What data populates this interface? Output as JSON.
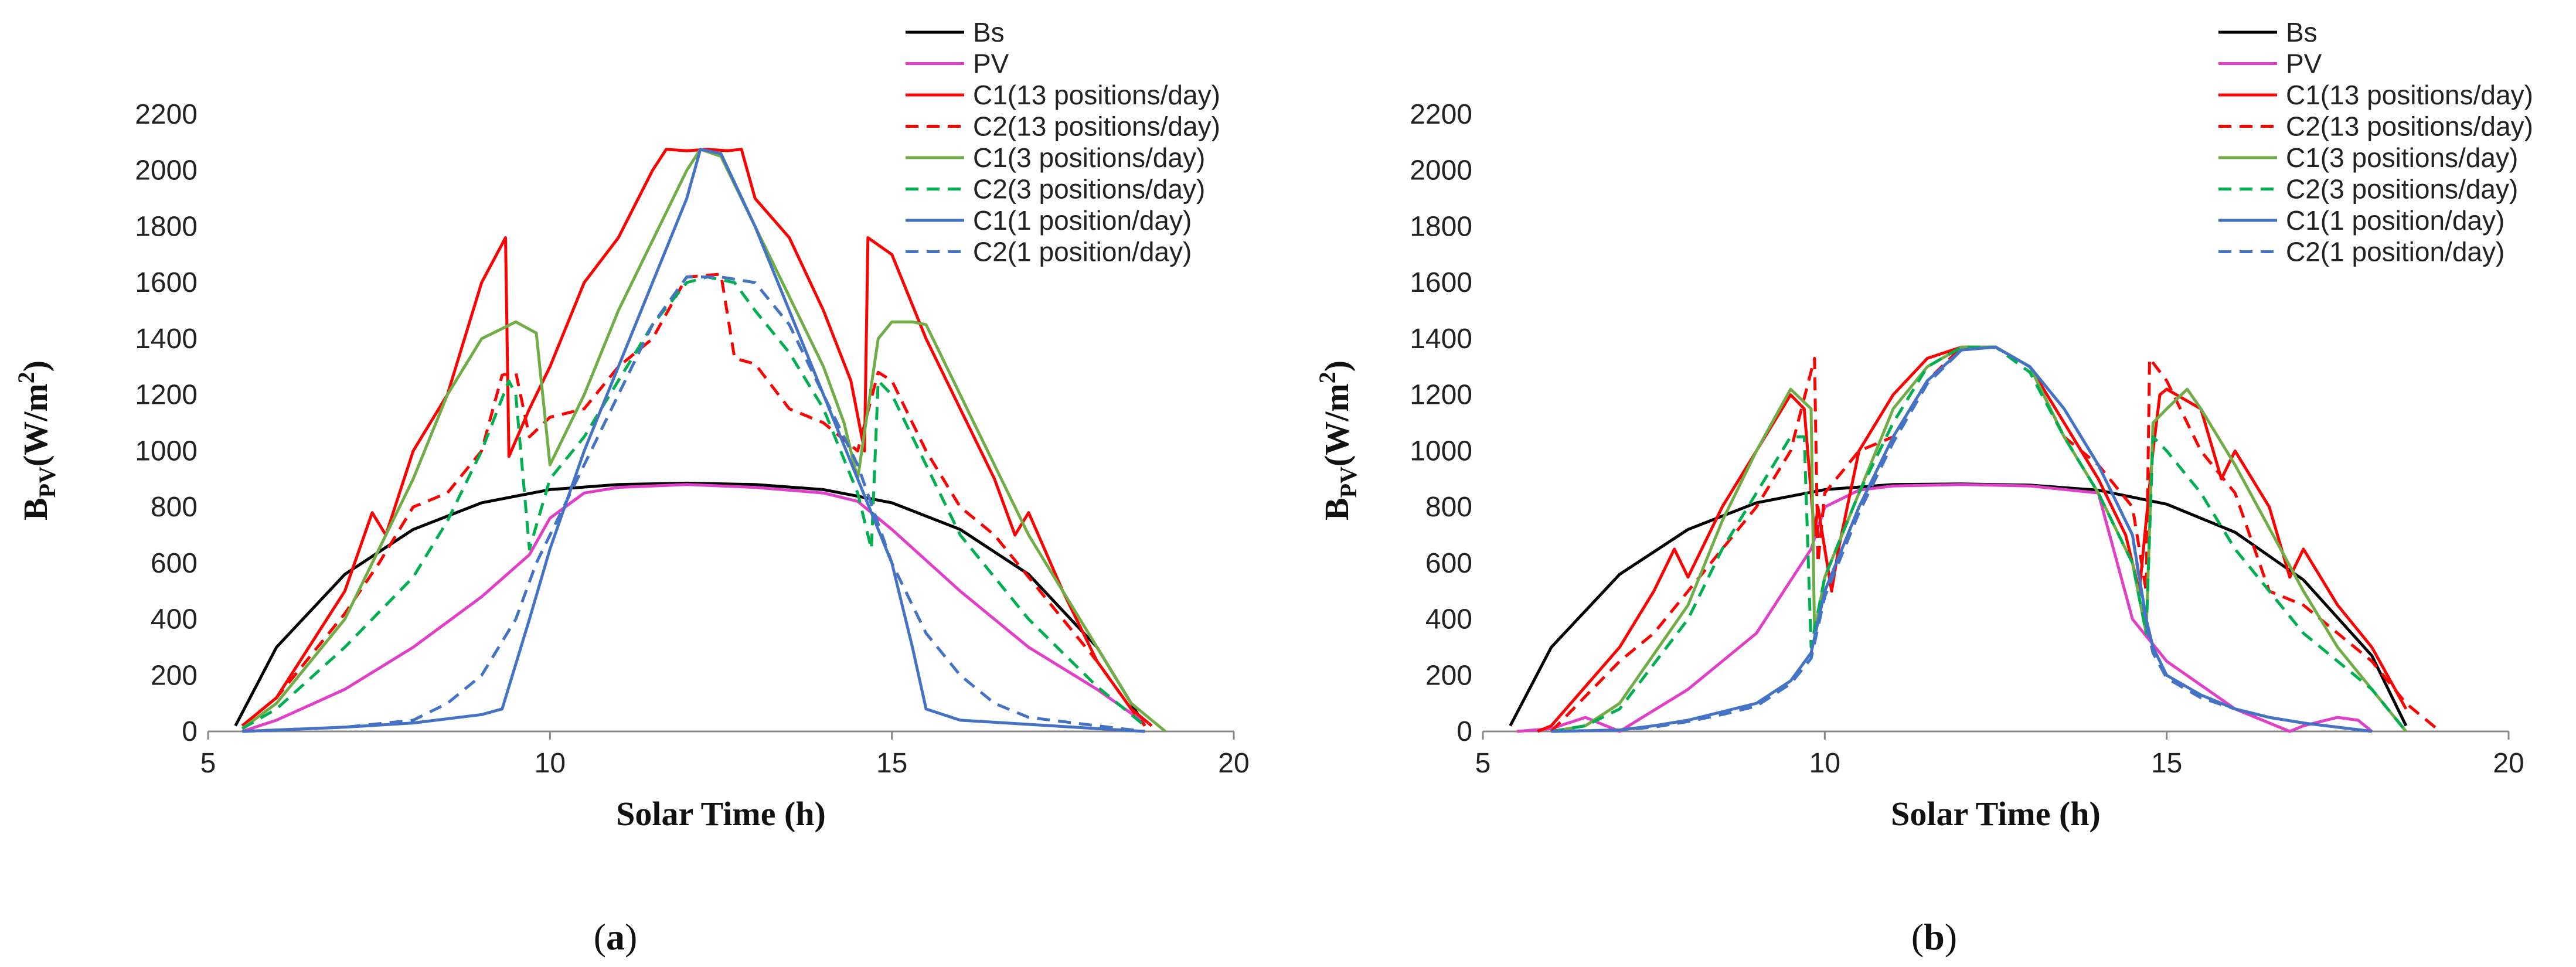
{
  "chart_data": [
    {
      "id": "a",
      "type": "line",
      "caption_letter": "a",
      "xlabel": "Solar Time (h)",
      "ylabel_main": "B",
      "ylabel_sub": "PV",
      "ylabel_unit": "(W/m",
      "ylabel_sup": "2",
      "ylabel_close": ")",
      "xlim": [
        5,
        20
      ],
      "ylim": [
        0,
        2200
      ],
      "xticks": [
        5,
        10,
        15,
        20
      ],
      "yticks": [
        0,
        200,
        400,
        600,
        800,
        1000,
        1200,
        1400,
        1600,
        1800,
        2000,
        2200
      ],
      "grid": false,
      "legend_position": "top-right",
      "series": [
        {
          "name": "Bs",
          "color": "#000000",
          "dash": "solid",
          "x": [
            5.4,
            6,
            7,
            8,
            9,
            10,
            11,
            12,
            13,
            14,
            15,
            16,
            17,
            18,
            18.7
          ],
          "y": [
            20,
            300,
            560,
            720,
            815,
            862,
            880,
            885,
            880,
            862,
            815,
            720,
            560,
            300,
            20
          ]
        },
        {
          "name": "PV",
          "color": "#E040C8",
          "dash": "solid",
          "x": [
            5.5,
            6,
            7,
            8,
            9,
            9.7,
            10,
            10.5,
            11,
            12,
            13,
            14,
            14.5,
            15,
            16,
            17,
            18,
            18.7
          ],
          "y": [
            0,
            40,
            150,
            300,
            480,
            630,
            760,
            850,
            870,
            880,
            870,
            850,
            820,
            720,
            500,
            300,
            150,
            30
          ]
        },
        {
          "name": "C1(13 positions/day)",
          "color": "#FF0000",
          "dash": "solid",
          "x": [
            5.5,
            6,
            7,
            7.4,
            7.6,
            8,
            8.5,
            9,
            9.35,
            9.4,
            9.7,
            10,
            10.5,
            11,
            11.5,
            11.7,
            12,
            12.3,
            12.6,
            12.8,
            13,
            13.5,
            14,
            14.4,
            14.6,
            14.65,
            15,
            15.5,
            16,
            16.5,
            16.8,
            17,
            17.5,
            18,
            18.5,
            18.8
          ],
          "y": [
            20,
            120,
            500,
            780,
            700,
            1000,
            1200,
            1600,
            1760,
            980,
            1150,
            1300,
            1600,
            1760,
            2000,
            2075,
            2070,
            2075,
            2070,
            2075,
            1900,
            1760,
            1500,
            1250,
            1000,
            1760,
            1700,
            1400,
            1150,
            900,
            700,
            780,
            500,
            250,
            80,
            20
          ]
        },
        {
          "name": "C2(13 positions/day)",
          "color": "#FF0000",
          "dash": "dashed",
          "x": [
            5.5,
            6,
            7,
            7.5,
            8,
            8.5,
            9,
            9.3,
            9.5,
            9.7,
            10,
            10.5,
            11,
            11.5,
            12,
            12.5,
            12.7,
            13,
            13.5,
            14,
            14.5,
            14.8,
            15,
            15.5,
            16,
            16.5,
            17,
            17.5,
            18,
            18.5,
            18.7
          ],
          "y": [
            20,
            120,
            420,
            600,
            800,
            850,
            1000,
            1270,
            1280,
            1050,
            1120,
            1150,
            1300,
            1400,
            1620,
            1630,
            1330,
            1310,
            1150,
            1100,
            1000,
            1280,
            1250,
            1000,
            800,
            700,
            550,
            400,
            250,
            80,
            20
          ]
        },
        {
          "name": "C1(3 positions/day)",
          "color": "#70AD47",
          "dash": "solid",
          "x": [
            5.5,
            6,
            7,
            8,
            8.5,
            9,
            9.5,
            9.8,
            10,
            10.5,
            11,
            11.5,
            12,
            12.2,
            12.5,
            13,
            13.5,
            14,
            14.3,
            14.5,
            14.8,
            15,
            15.3,
            15.5,
            16,
            17,
            18,
            18.5,
            19
          ],
          "y": [
            10,
            100,
            400,
            900,
            1200,
            1400,
            1460,
            1420,
            950,
            1200,
            1500,
            1750,
            2000,
            2075,
            2050,
            1800,
            1550,
            1300,
            1100,
            900,
            1400,
            1460,
            1460,
            1450,
            1200,
            700,
            300,
            100,
            0
          ]
        },
        {
          "name": "C2(3 positions/day)",
          "color": "#00B050",
          "dash": "dashed",
          "x": [
            5.5,
            6,
            7,
            8,
            8.5,
            9,
            9.4,
            9.5,
            9.7,
            10,
            10.5,
            11,
            11.5,
            12,
            12.3,
            12.7,
            13,
            13.5,
            14,
            14.5,
            14.7,
            14.8,
            15,
            15.5,
            16,
            16.5,
            17,
            17.5,
            18,
            18.7
          ],
          "y": [
            10,
            80,
            300,
            550,
            750,
            1000,
            1250,
            1200,
            650,
            900,
            1050,
            1250,
            1450,
            1600,
            1620,
            1600,
            1500,
            1350,
            1150,
            850,
            650,
            1250,
            1200,
            950,
            700,
            550,
            400,
            280,
            160,
            20
          ]
        },
        {
          "name": "C1(1 position/day)",
          "color": "#4472C4",
          "dash": "solid",
          "x": [
            5.5,
            6,
            7,
            8,
            9,
            9.3,
            9.7,
            10,
            10.5,
            11,
            11.5,
            12,
            12.2,
            12.5,
            13,
            13.5,
            14,
            14.5,
            15,
            15.3,
            15.5,
            16,
            17,
            18,
            18.7
          ],
          "y": [
            0,
            5,
            15,
            30,
            60,
            80,
            400,
            650,
            1000,
            1300,
            1600,
            1900,
            2075,
            2060,
            1800,
            1500,
            1200,
            900,
            600,
            300,
            80,
            40,
            25,
            10,
            0
          ]
        },
        {
          "name": "C2(1 position/day)",
          "color": "#4472C4",
          "dash": "dashed",
          "x": [
            5.5,
            6,
            7,
            8,
            8.5,
            9,
            9.5,
            9.8,
            10,
            10.5,
            11,
            11.5,
            12,
            12.5,
            13,
            13.5,
            14,
            14.5,
            15,
            15.5,
            16,
            16.5,
            17,
            18,
            18.7
          ],
          "y": [
            0,
            5,
            15,
            40,
            100,
            200,
            400,
            600,
            700,
            950,
            1200,
            1450,
            1620,
            1620,
            1600,
            1450,
            1200,
            950,
            600,
            350,
            200,
            100,
            50,
            20,
            0
          ]
        }
      ]
    },
    {
      "id": "b",
      "type": "line",
      "caption_letter": "b",
      "xlabel": "Solar Time (h)",
      "ylabel_main": "B",
      "ylabel_sub": "PV",
      "ylabel_unit": "(W/m",
      "ylabel_sup": "2",
      "ylabel_close": ")",
      "xlim": [
        5,
        20
      ],
      "ylim": [
        0,
        2200
      ],
      "xticks": [
        5,
        10,
        15,
        20
      ],
      "yticks": [
        0,
        200,
        400,
        600,
        800,
        1000,
        1200,
        1400,
        1600,
        1800,
        2000,
        2200
      ],
      "grid": false,
      "legend_position": "top-right",
      "series": [
        {
          "name": "Bs",
          "color": "#000000",
          "dash": "solid",
          "x": [
            5.4,
            6,
            7,
            8,
            9,
            10,
            11,
            12,
            13,
            14,
            15,
            16,
            17,
            18,
            18.5
          ],
          "y": [
            20,
            300,
            560,
            720,
            815,
            862,
            880,
            882,
            878,
            860,
            810,
            710,
            540,
            270,
            20
          ]
        },
        {
          "name": "PV",
          "color": "#E040C8",
          "dash": "solid",
          "x": [
            5.5,
            6,
            6.5,
            7,
            8,
            9,
            9.8,
            10,
            10.5,
            11,
            12,
            13,
            14,
            14.5,
            15,
            16,
            16.8,
            17,
            17.5,
            17.8,
            18
          ],
          "y": [
            0,
            10,
            50,
            0,
            150,
            350,
            650,
            800,
            860,
            875,
            880,
            875,
            850,
            400,
            250,
            80,
            0,
            20,
            50,
            40,
            0
          ]
        },
        {
          "name": "C1(13 positions/day)",
          "color": "#FF0000",
          "dash": "solid",
          "x": [
            5.8,
            6,
            7,
            7.5,
            7.8,
            8,
            8.5,
            9,
            9.5,
            9.7,
            9.85,
            9.9,
            10.1,
            10.2,
            10.5,
            11,
            11.5,
            12,
            12.5,
            13,
            13.5,
            14,
            14.4,
            14.6,
            14.8,
            14.9,
            15,
            15.5,
            15.8,
            16,
            16.5,
            16.8,
            17,
            17.5,
            18,
            18.5
          ],
          "y": [
            0,
            20,
            300,
            500,
            650,
            550,
            800,
            1000,
            1200,
            1150,
            700,
            800,
            500,
            650,
            1000,
            1200,
            1330,
            1370,
            1370,
            1300,
            1100,
            900,
            700,
            500,
            1000,
            1200,
            1220,
            1150,
            900,
            1000,
            800,
            550,
            650,
            450,
            300,
            80
          ]
        },
        {
          "name": "C2(13 positions/day)",
          "color": "#FF0000",
          "dash": "dashed",
          "x": [
            6,
            7,
            7.5,
            8,
            8.5,
            9,
            9.5,
            9.85,
            9.9,
            10,
            10.5,
            11,
            11.5,
            12,
            12.5,
            13,
            13.5,
            14,
            14.5,
            14.7,
            14.75,
            15,
            15.5,
            16,
            16.5,
            17,
            17.5,
            18,
            18.5,
            19
          ],
          "y": [
            0,
            250,
            350,
            500,
            650,
            800,
            1000,
            1330,
            600,
            850,
            1000,
            1050,
            1250,
            1370,
            1370,
            1300,
            1050,
            950,
            800,
            500,
            1330,
            1250,
            1000,
            850,
            500,
            450,
            350,
            250,
            100,
            0
          ]
        },
        {
          "name": "C1(3 positions/day)",
          "color": "#70AD47",
          "dash": "solid",
          "x": [
            6,
            6.5,
            7,
            8,
            8.5,
            9,
            9.5,
            9.8,
            9.85,
            10,
            10.5,
            11,
            11.5,
            12,
            12.5,
            13,
            13.5,
            14,
            14.5,
            14.7,
            14.8,
            15,
            15.3,
            15.5,
            16,
            17,
            17.5,
            18,
            18.5
          ],
          "y": [
            0,
            20,
            100,
            450,
            750,
            1000,
            1220,
            1150,
            350,
            550,
            850,
            1150,
            1300,
            1370,
            1370,
            1300,
            1050,
            850,
            600,
            350,
            1100,
            1150,
            1220,
            1150,
            950,
            500,
            300,
            150,
            0
          ]
        },
        {
          "name": "C2(3 positions/day)",
          "color": "#00B050",
          "dash": "dashed",
          "x": [
            6,
            6.5,
            7,
            8,
            8.5,
            9,
            9.5,
            9.7,
            9.8,
            10,
            10.5,
            11,
            11.5,
            12,
            12.5,
            13,
            13.5,
            14,
            14.5,
            14.7,
            14.8,
            15,
            15.5,
            16,
            16.5,
            17,
            17.5,
            18,
            18.5
          ],
          "y": [
            0,
            20,
            80,
            400,
            650,
            850,
            1050,
            1050,
            300,
            550,
            850,
            1100,
            1300,
            1370,
            1370,
            1280,
            1050,
            850,
            600,
            350,
            1050,
            1000,
            850,
            650,
            500,
            350,
            250,
            150,
            0
          ]
        },
        {
          "name": "C1(1 position/day)",
          "color": "#4472C4",
          "dash": "solid",
          "x": [
            6,
            7,
            7.5,
            8,
            8.5,
            9,
            9.5,
            9.8,
            10,
            10.5,
            11,
            11.5,
            12,
            12.5,
            13,
            13.5,
            14,
            14.5,
            14.7,
            14.8,
            15,
            15.5,
            16,
            16.5,
            17,
            17.5,
            18
          ],
          "y": [
            0,
            5,
            20,
            40,
            70,
            100,
            180,
            280,
            500,
            800,
            1050,
            1250,
            1360,
            1370,
            1300,
            1150,
            950,
            700,
            400,
            300,
            200,
            130,
            80,
            50,
            30,
            15,
            0
          ]
        },
        {
          "name": "C2(1 position/day)",
          "color": "#4472C4",
          "dash": "dashed",
          "x": [
            6,
            7,
            7.5,
            8,
            8.5,
            9,
            9.5,
            9.8,
            10,
            10.5,
            11,
            11.5,
            12,
            12.5,
            13,
            13.5,
            14,
            14.5,
            14.7,
            14.8,
            15,
            15.5,
            16,
            16.5,
            17,
            17.5,
            18
          ],
          "y": [
            0,
            5,
            15,
            35,
            60,
            90,
            170,
            260,
            480,
            780,
            1030,
            1240,
            1360,
            1370,
            1300,
            1150,
            950,
            700,
            380,
            280,
            190,
            120,
            80,
            50,
            30,
            15,
            0
          ]
        }
      ]
    }
  ]
}
